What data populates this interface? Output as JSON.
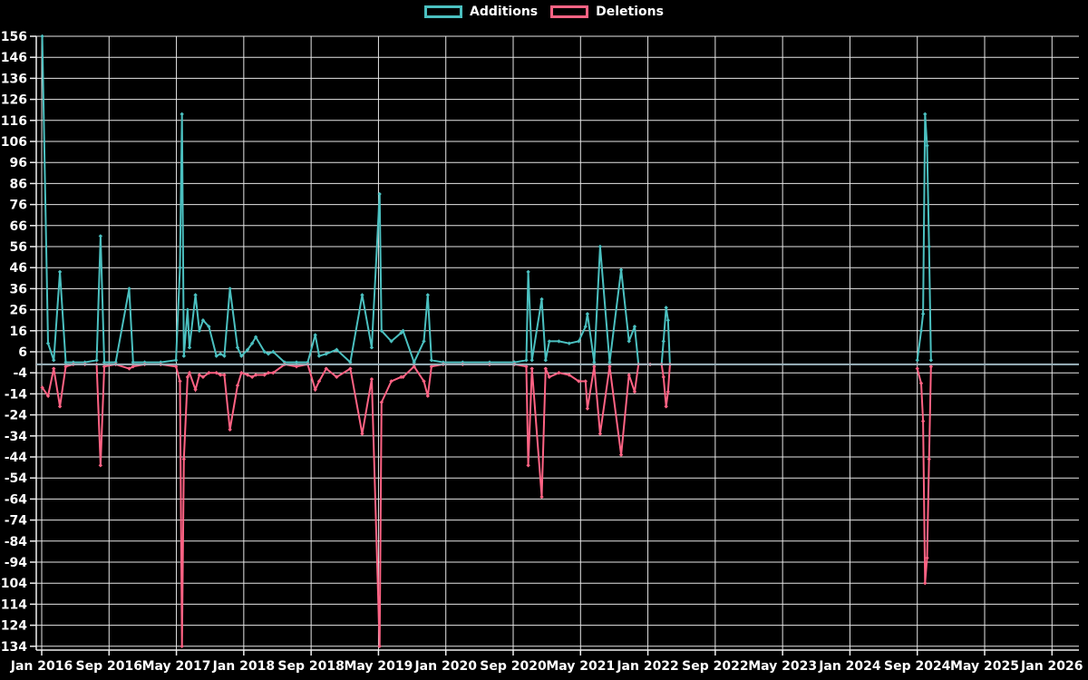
{
  "page": {
    "background": "#000000"
  },
  "chart_data": {
    "type": "line",
    "title": "",
    "legend_position": "top",
    "grid": true,
    "x_axis": {
      "start_month": "2016-01",
      "end_month": "2026-01",
      "tick_labels": [
        "Jan 2016",
        "Sep 2016",
        "May 2017",
        "Jan 2018",
        "Sep 2018",
        "May 2019",
        "Jan 2020",
        "Sep 2020",
        "May 2021",
        "Jan 2022",
        "Sep 2022",
        "May 2023",
        "Jan 2024",
        "Sep 2024",
        "May 2025",
        "Jan 2026"
      ]
    },
    "y_axis": {
      "min": -134,
      "max": 156,
      "step": 10,
      "tick_labels": [
        "156",
        "146",
        "136",
        "126",
        "116",
        "106",
        "96",
        "86",
        "76",
        "66",
        "56",
        "46",
        "36",
        "26",
        "16",
        "6",
        "-4",
        "-14",
        "-24",
        "-34",
        "-44",
        "-54",
        "-64",
        "-74",
        "-84",
        "-94",
        "-104",
        "-114",
        "-124",
        "-134"
      ]
    },
    "colors": {
      "background": "#000000",
      "gridline": "#e6e6e6",
      "axis_line": "#f0f0f0",
      "zero_line": "#9db5be",
      "axis_text": "#ffffff",
      "additions": "#4bc0c0",
      "deletions": "#ff6384"
    },
    "series": [
      {
        "name": "Additions",
        "color": "#4bc0c0"
      },
      {
        "name": "Deletions",
        "color": "#ff6384"
      }
    ],
    "rows": [
      [
        "2016-01-03",
        156,
        -11
      ],
      [
        "2016-01-24",
        10,
        -15
      ],
      [
        "2016-02-14",
        2,
        -2
      ],
      [
        "2016-03-06",
        44,
        -20
      ],
      [
        "2016-03-27",
        1,
        -1
      ],
      [
        "2016-04-24",
        1,
        0
      ],
      [
        "2016-06-05",
        1,
        0
      ],
      [
        "2016-07-17",
        2,
        0
      ],
      [
        "2016-07-31",
        61,
        -48
      ],
      [
        "2016-08-14",
        1,
        -1
      ],
      [
        "2016-09-25",
        1,
        0
      ],
      [
        "2016-11-13",
        36,
        -2
      ],
      [
        "2016-11-27",
        1,
        -1
      ],
      [
        "2017-01-08",
        1,
        0
      ],
      [
        "2017-03-05",
        1,
        0
      ],
      [
        "2017-04-30",
        2,
        -1
      ],
      [
        "2017-05-14",
        46,
        -8
      ],
      [
        "2017-05-21",
        119,
        -134
      ],
      [
        "2017-05-28",
        4,
        -45
      ],
      [
        "2017-06-11",
        26,
        -6
      ],
      [
        "2017-06-18",
        8,
        -4
      ],
      [
        "2017-07-09",
        33,
        -12
      ],
      [
        "2017-07-23",
        16,
        -5
      ],
      [
        "2017-08-06",
        21,
        -6
      ],
      [
        "2017-08-27",
        18,
        -4
      ],
      [
        "2017-09-24",
        4,
        -4
      ],
      [
        "2017-10-08",
        5,
        -5
      ],
      [
        "2017-10-22",
        4,
        -5
      ],
      [
        "2017-11-12",
        36,
        -31
      ],
      [
        "2017-12-09",
        8,
        -10
      ],
      [
        "2017-12-23",
        4,
        -4
      ],
      [
        "2018-01-15",
        7,
        -5
      ],
      [
        "2018-02-01",
        10,
        -6
      ],
      [
        "2018-02-14",
        13,
        -5
      ],
      [
        "2018-03-15",
        6,
        -5
      ],
      [
        "2018-03-29",
        5,
        -4
      ],
      [
        "2018-04-16",
        6,
        -4
      ],
      [
        "2018-05-27",
        1,
        0
      ],
      [
        "2018-07-09",
        1,
        -1
      ],
      [
        "2018-08-19",
        1,
        0
      ],
      [
        "2018-09-16",
        14,
        -12
      ],
      [
        "2018-09-30",
        4,
        -8
      ],
      [
        "2018-10-25",
        5,
        -2
      ],
      [
        "2018-12-02",
        7,
        -6
      ],
      [
        "2019-01-21",
        1,
        -2
      ],
      [
        "2019-03-03",
        33,
        -33
      ],
      [
        "2019-04-07",
        8,
        -7
      ],
      [
        "2019-05-05",
        81,
        -134
      ],
      [
        "2019-05-12",
        16,
        -18
      ],
      [
        "2019-06-17",
        11,
        -8
      ],
      [
        "2019-07-22",
        15,
        -6
      ],
      [
        "2019-07-29",
        16,
        -6
      ],
      [
        "2019-09-08",
        1,
        -1
      ],
      [
        "2019-10-13",
        11,
        -8
      ],
      [
        "2019-10-27",
        33,
        -15
      ],
      [
        "2019-11-10",
        2,
        -1
      ],
      [
        "2019-12-22",
        1,
        0
      ],
      [
        "2020-03-01",
        1,
        0
      ],
      [
        "2020-06-07",
        1,
        0
      ],
      [
        "2020-09-06",
        1,
        0
      ],
      [
        "2020-10-18",
        2,
        -1
      ],
      [
        "2020-10-25",
        44,
        -48
      ],
      [
        "2020-11-08",
        2,
        -2
      ],
      [
        "2020-12-13",
        31,
        -63
      ],
      [
        "2020-12-27",
        2,
        -2
      ],
      [
        "2021-01-10",
        11,
        -6
      ],
      [
        "2021-02-14",
        11,
        -4
      ],
      [
        "2021-03-21",
        10,
        -5
      ],
      [
        "2021-04-25",
        11,
        -8
      ],
      [
        "2021-05-19",
        18,
        -8
      ],
      [
        "2021-05-26",
        24,
        -21
      ],
      [
        "2021-06-20",
        1,
        -1
      ],
      [
        "2021-07-11",
        56,
        -33
      ],
      [
        "2021-08-15",
        1,
        -1
      ],
      [
        "2021-09-26",
        45,
        -43
      ],
      [
        "2021-10-24",
        11,
        -5
      ],
      [
        "2021-11-14",
        18,
        -13
      ],
      [
        "2021-11-28",
        0,
        0
      ],
      [
        "2022-01-09",
        0,
        0
      ],
      [
        "2022-02-20",
        0,
        0
      ],
      [
        "2022-02-27",
        11,
        -6
      ],
      [
        "2022-03-06",
        27,
        -20
      ],
      [
        "2022-03-13",
        21,
        -13
      ],
      [
        "2022-03-20",
        0,
        0
      ],
      null,
      [
        "2024-09-01",
        2,
        -2
      ],
      [
        "2024-09-15",
        16,
        -9
      ],
      [
        "2024-09-22",
        24,
        -27
      ],
      [
        "2024-09-29",
        119,
        -104
      ],
      [
        "2024-10-06",
        104,
        -92
      ],
      [
        "2024-10-13",
        56,
        -45
      ],
      [
        "2024-10-20",
        2,
        -1
      ]
    ]
  }
}
